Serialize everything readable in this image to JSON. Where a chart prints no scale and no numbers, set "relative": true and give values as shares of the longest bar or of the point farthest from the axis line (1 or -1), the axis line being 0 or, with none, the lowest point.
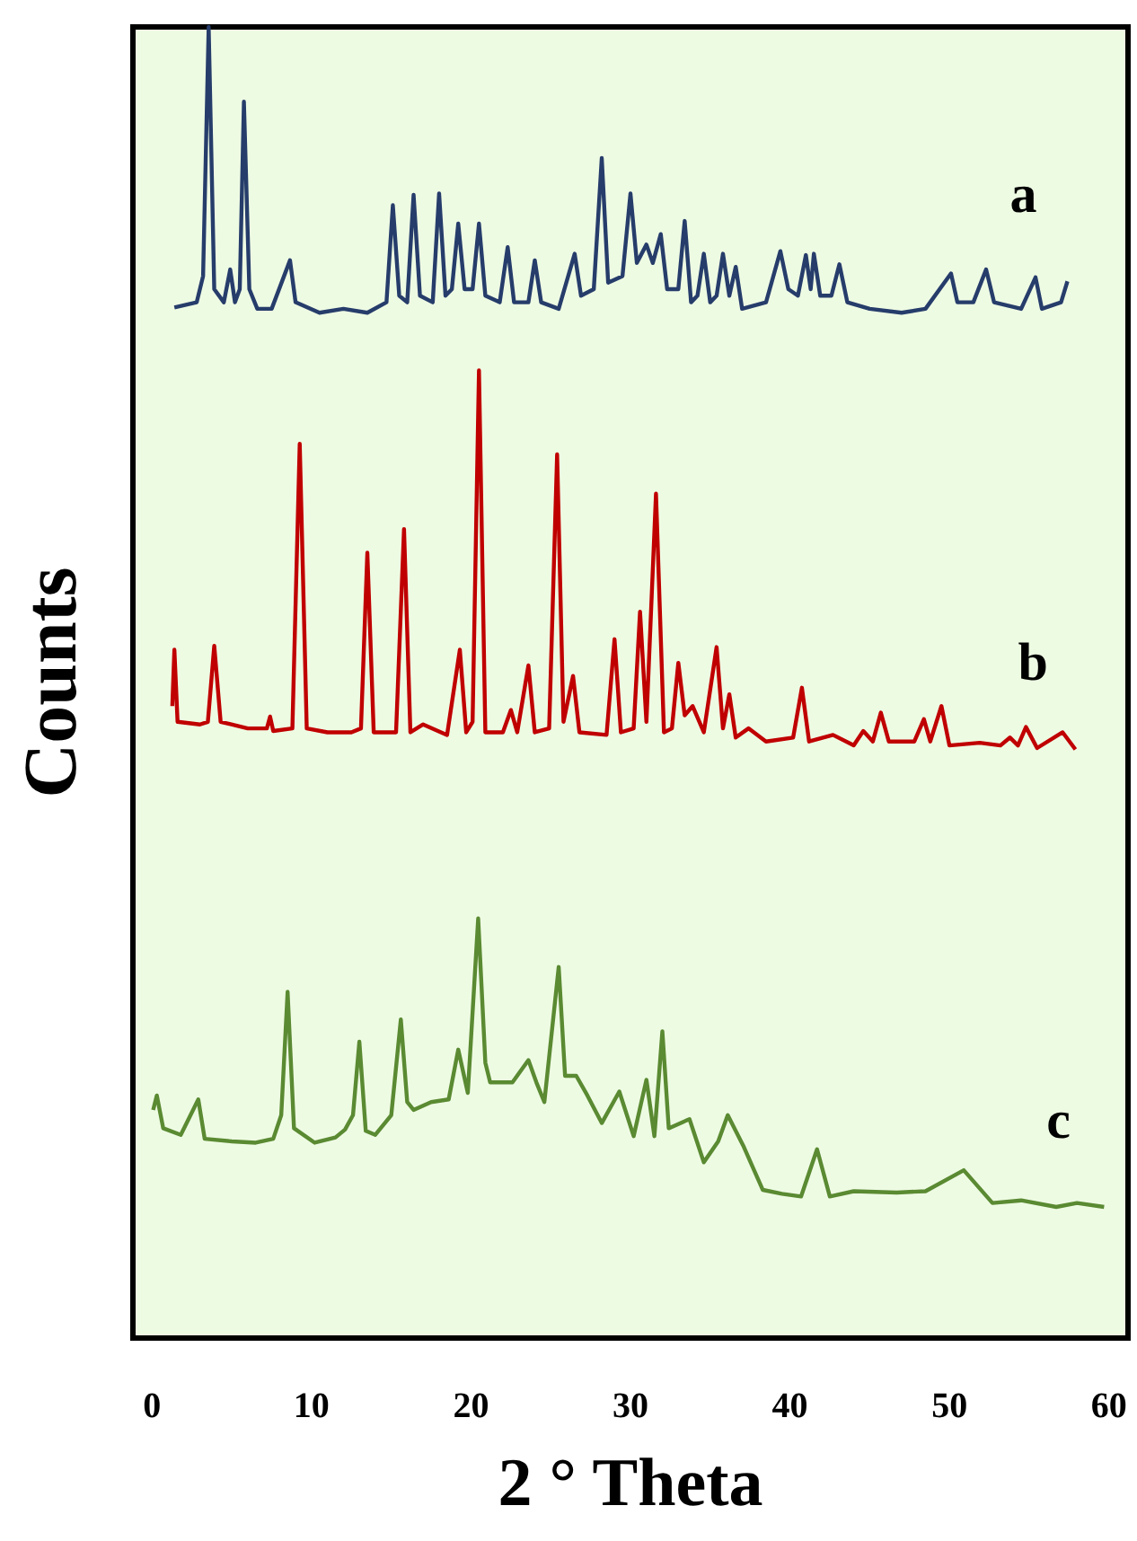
{
  "chart_data": {
    "type": "line",
    "relative": true,
    "xlabel": "2 ° Theta",
    "ylabel": "Counts",
    "xlim": [
      -1.2,
      61.2
    ],
    "xticks": [
      0,
      10,
      20,
      30,
      40,
      50,
      60
    ],
    "grid": false,
    "legend": false,
    "marker": "none",
    "series": [
      {
        "name": "a",
        "color": "#263d6b",
        "x": [
          1.4,
          2.8,
          3.2,
          3.55,
          3.9,
          4.5,
          4.9,
          5.2,
          5.5,
          5.76,
          6.1,
          6.6,
          7.5,
          8.65,
          9.0,
          10.5,
          12,
          13.5,
          14.7,
          15.1,
          15.5,
          16.0,
          16.4,
          16.8,
          17.6,
          18.0,
          18.4,
          18.8,
          19.2,
          19.6,
          20.1,
          20.5,
          20.9,
          21.8,
          22.3,
          22.7,
          23.6,
          24.0,
          24.4,
          25.5,
          26.5,
          26.9,
          27.7,
          28.2,
          28.6,
          29.5,
          30.0,
          30.4,
          31.0,
          31.4,
          31.9,
          32.3,
          33.0,
          33.4,
          33.8,
          34.2,
          34.6,
          35.0,
          35.4,
          35.8,
          36.2,
          36.6,
          37.0,
          38.5,
          39.4,
          39.9,
          40.5,
          41.0,
          41.3,
          41.5,
          41.9,
          42.6,
          43.1,
          43.6,
          45,
          47,
          48.5,
          50.1,
          50.5,
          51.5,
          52.3,
          52.8,
          54.5,
          55.4,
          55.8,
          57.0,
          57.4
        ],
        "values": [
          0.786,
          0.79,
          0.81,
          1.0,
          0.8,
          0.79,
          0.815,
          0.79,
          0.8,
          0.943,
          0.8,
          0.785,
          0.785,
          0.822,
          0.79,
          0.782,
          0.785,
          0.782,
          0.79,
          0.864,
          0.795,
          0.79,
          0.872,
          0.795,
          0.79,
          0.873,
          0.795,
          0.8,
          0.85,
          0.8,
          0.8,
          0.85,
          0.795,
          0.79,
          0.832,
          0.79,
          0.79,
          0.822,
          0.79,
          0.785,
          0.827,
          0.795,
          0.8,
          0.9,
          0.805,
          0.81,
          0.873,
          0.82,
          0.834,
          0.82,
          0.842,
          0.8,
          0.8,
          0.852,
          0.79,
          0.795,
          0.827,
          0.79,
          0.795,
          0.827,
          0.795,
          0.817,
          0.785,
          0.79,
          0.829,
          0.8,
          0.795,
          0.826,
          0.8,
          0.827,
          0.795,
          0.795,
          0.819,
          0.79,
          0.785,
          0.782,
          0.785,
          0.812,
          0.79,
          0.79,
          0.815,
          0.79,
          0.785,
          0.809,
          0.785,
          0.79,
          0.806
        ]
      },
      {
        "name": "b",
        "color": "#c00000",
        "x": [
          1.27,
          1.4,
          1.6,
          3.0,
          3.5,
          3.9,
          4.3,
          6,
          7.2,
          7.4,
          7.6,
          8.8,
          9.26,
          9.7,
          11,
          12.5,
          13.1,
          13.5,
          13.9,
          15.3,
          15.8,
          16.2,
          17,
          18.5,
          19.3,
          19.7,
          20.1,
          20.5,
          20.9,
          22.0,
          22.5,
          22.9,
          23.6,
          24.0,
          24.9,
          25.4,
          25.8,
          26.4,
          26.8,
          28.5,
          29.0,
          29.4,
          30.2,
          30.6,
          31.0,
          31.6,
          32.1,
          32.6,
          33.0,
          33.4,
          33.9,
          34.6,
          35.4,
          35.8,
          36.2,
          36.6,
          37.4,
          38.5,
          40.2,
          40.75,
          41.2,
          42.7,
          44.0,
          44.6,
          45.2,
          45.7,
          46.2,
          47.8,
          48.4,
          48.8,
          49.5,
          50,
          51.9,
          53.2,
          53.8,
          54.3,
          54.8,
          55.5,
          57.1,
          57.9
        ],
        "values": [
          0.482,
          0.525,
          0.47,
          0.468,
          0.47,
          0.528,
          0.47,
          0.465,
          0.465,
          0.474,
          0.463,
          0.465,
          0.682,
          0.465,
          0.462,
          0.462,
          0.465,
          0.599,
          0.462,
          0.462,
          0.617,
          0.462,
          0.468,
          0.46,
          0.525,
          0.462,
          0.47,
          0.738,
          0.462,
          0.462,
          0.479,
          0.462,
          0.513,
          0.462,
          0.465,
          0.674,
          0.47,
          0.505,
          0.462,
          0.46,
          0.533,
          0.462,
          0.465,
          0.554,
          0.47,
          0.644,
          0.462,
          0.465,
          0.515,
          0.475,
          0.482,
          0.462,
          0.527,
          0.465,
          0.491,
          0.458,
          0.465,
          0.455,
          0.458,
          0.496,
          0.455,
          0.46,
          0.452,
          0.463,
          0.455,
          0.477,
          0.455,
          0.455,
          0.472,
          0.455,
          0.482,
          0.452,
          0.454,
          0.452,
          0.458,
          0.452,
          0.466,
          0.45,
          0.462,
          0.449
        ]
      },
      {
        "name": "c",
        "color": "#5a8a32",
        "x": [
          0.07,
          0.3,
          0.7,
          1.8,
          2.9,
          3.3,
          5,
          6.5,
          7.6,
          8.1,
          8.5,
          8.9,
          10.2,
          11.5,
          12.1,
          12.6,
          13.0,
          13.4,
          14.0,
          15.0,
          15.6,
          16.0,
          16.4,
          17.5,
          18.6,
          19.2,
          19.8,
          20.45,
          20.9,
          21.2,
          22.6,
          23.6,
          24.1,
          24.6,
          25.5,
          25.9,
          26.6,
          27.3,
          28.2,
          29.3,
          30.2,
          31.0,
          31.5,
          32.0,
          32.4,
          33.7,
          34.6,
          35.5,
          36.1,
          37.1,
          38.3,
          39.5,
          40.7,
          41.7,
          42.5,
          44,
          46.7,
          48.5,
          50.9,
          52.7,
          54.5,
          56.7,
          58,
          59.7
        ],
        "values": [
          0.174,
          0.185,
          0.16,
          0.155,
          0.182,
          0.152,
          0.15,
          0.149,
          0.152,
          0.17,
          0.264,
          0.16,
          0.149,
          0.153,
          0.159,
          0.17,
          0.226,
          0.158,
          0.155,
          0.17,
          0.243,
          0.18,
          0.174,
          0.18,
          0.182,
          0.22,
          0.187,
          0.32,
          0.21,
          0.195,
          0.195,
          0.212,
          0.195,
          0.18,
          0.283,
          0.2,
          0.2,
          0.185,
          0.164,
          0.188,
          0.154,
          0.197,
          0.154,
          0.234,
          0.16,
          0.167,
          0.134,
          0.15,
          0.17,
          0.146,
          0.113,
          0.11,
          0.108,
          0.144,
          0.108,
          0.112,
          0.111,
          0.112,
          0.128,
          0.103,
          0.105,
          0.1,
          0.103,
          0.1
        ]
      }
    ]
  }
}
